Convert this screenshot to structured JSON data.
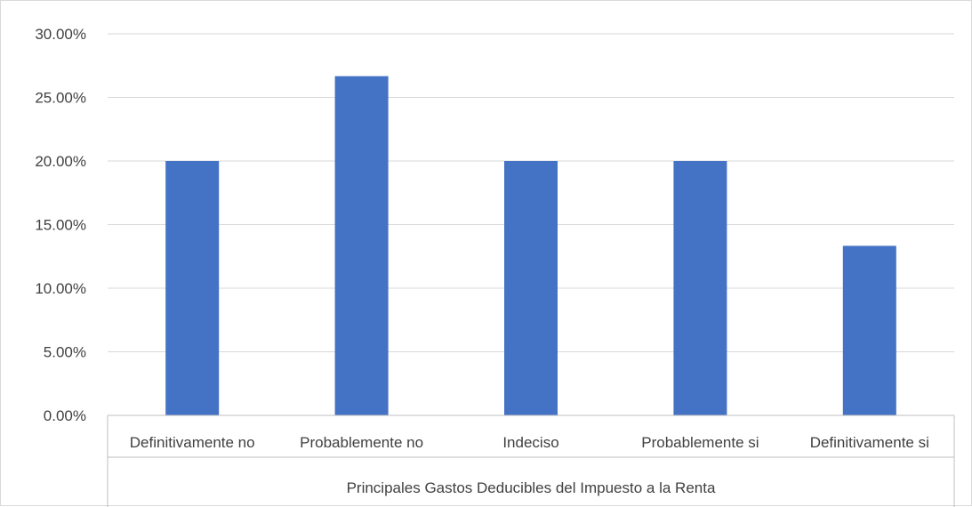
{
  "chart_data": {
    "type": "bar",
    "categories": [
      "Definitivamente no",
      "Probablemente no",
      "Indeciso",
      "Probablemente si",
      "Definitivamente si"
    ],
    "values": [
      20.0,
      26.67,
      20.0,
      20.0,
      13.33
    ],
    "xlabel": "Principales Gastos Deducibles del Impuesto a la Renta",
    "ylabel": "",
    "ylim": [
      0,
      30
    ],
    "yticks": [
      "0.00%",
      "5.00%",
      "10.00%",
      "15.00%",
      "20.00%",
      "25.00%",
      "30.00%"
    ],
    "grid": true,
    "legend": "none",
    "colors": {
      "bar": "#4472C4",
      "grid": "#d9d9d9",
      "axis": "#bfbfbf",
      "text": "#404040"
    }
  }
}
